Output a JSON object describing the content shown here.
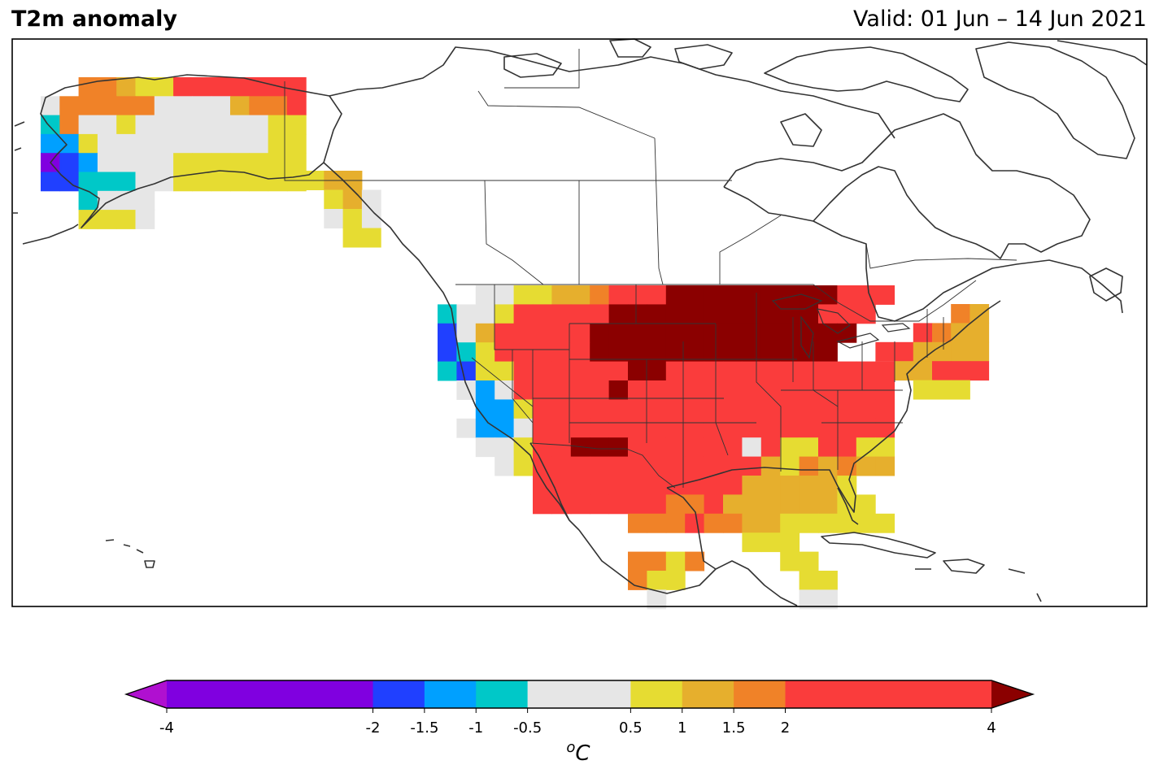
{
  "header": {
    "title": "T2m anomaly",
    "valid": "Valid: 01 Jun – 14 Jun 2021"
  },
  "colorbar": {
    "unit_sup": "o",
    "unit": "C",
    "extend": "both",
    "under_color": "#b010d0",
    "over_color": "#8b0000",
    "levels": [
      "-4",
      "-2",
      "-1.5",
      "-1",
      "-0.5",
      "0.5",
      "1",
      "1.5",
      "2",
      "4"
    ],
    "level_values": [
      -4,
      -2,
      -1.5,
      -1,
      -0.5,
      0.5,
      1,
      1.5,
      2,
      4
    ],
    "colors": [
      "#8000e0",
      "#2040ff",
      "#00a0ff",
      "#00c8c8",
      "#e6e6e6",
      "#e6dc32",
      "#e6af2d",
      "#f08228",
      "#fa3c3c"
    ]
  },
  "map": {
    "region": "North America",
    "legend": {
      "X": "#8b0000",
      "R": "#fa3c3c",
      "O": "#f08228",
      "G": "#e6af2d",
      "Y": "#e6dc32",
      "W": "#e6e6e6",
      "C": "#00c8c8",
      "L": "#00a0ff",
      "B": "#2040ff",
      "P": "#8000e0"
    },
    "alaska_grid": [
      "..OOGYYRRRRRRR..",
      "WOOOOOWWWWGOOR..",
      "COWWYWWWWWWWYY..",
      "LLYWWWWWWWWWYY..",
      "PBLWWWWYYYYYYY..",
      "BBCCCWWYYYYYYY..",
      "..CWWW..........",
      "..YYYW.........."
    ],
    "bc_grid": [
      "YGG.",
      ".YGW",
      ".WYW",
      "..YY"
    ],
    "conus_grid": [
      "..WWYYGGORRRXXXXXXXXXRRR",
      "CWWYRRRRRXXXXXXXXXXXRRR.",
      "BWGRRRRRXXXXXXXXXXXXXX..",
      "BCYRRRRRXXXXXXXXXXXXX...",
      "CBYYRRRRRRXXRRRRRRRRRRRR",
      ".WLWRRRRRXRRRRRRRRRRRRRR",
      "..LLYRRRRRRRRRRRRRRRRRRR",
      ".WLLWRRRRRRRRRRRRRRRRRRR",
      "..WWYRRXXXRRRRRRWRYYRRYY",
      "...WYRRRRRRRRRRRRGYOGOGG",
      ".....RRRRRRRRRRRGGGGGY..",
      ".....RRRRRRROORGGGGGGYY.",
      "..........OOOROOGGYYYYYY",
      "................YYY.....",
      "..........OOYO....YY....",
      "..........OYY......YY...",
      "...........W.......WW..."
    ],
    "ne_grid": [
      "......OG",
      "....ROGG",
      "..RRGGGG",
      "...GGRRR",
      "....YYY."
    ]
  }
}
